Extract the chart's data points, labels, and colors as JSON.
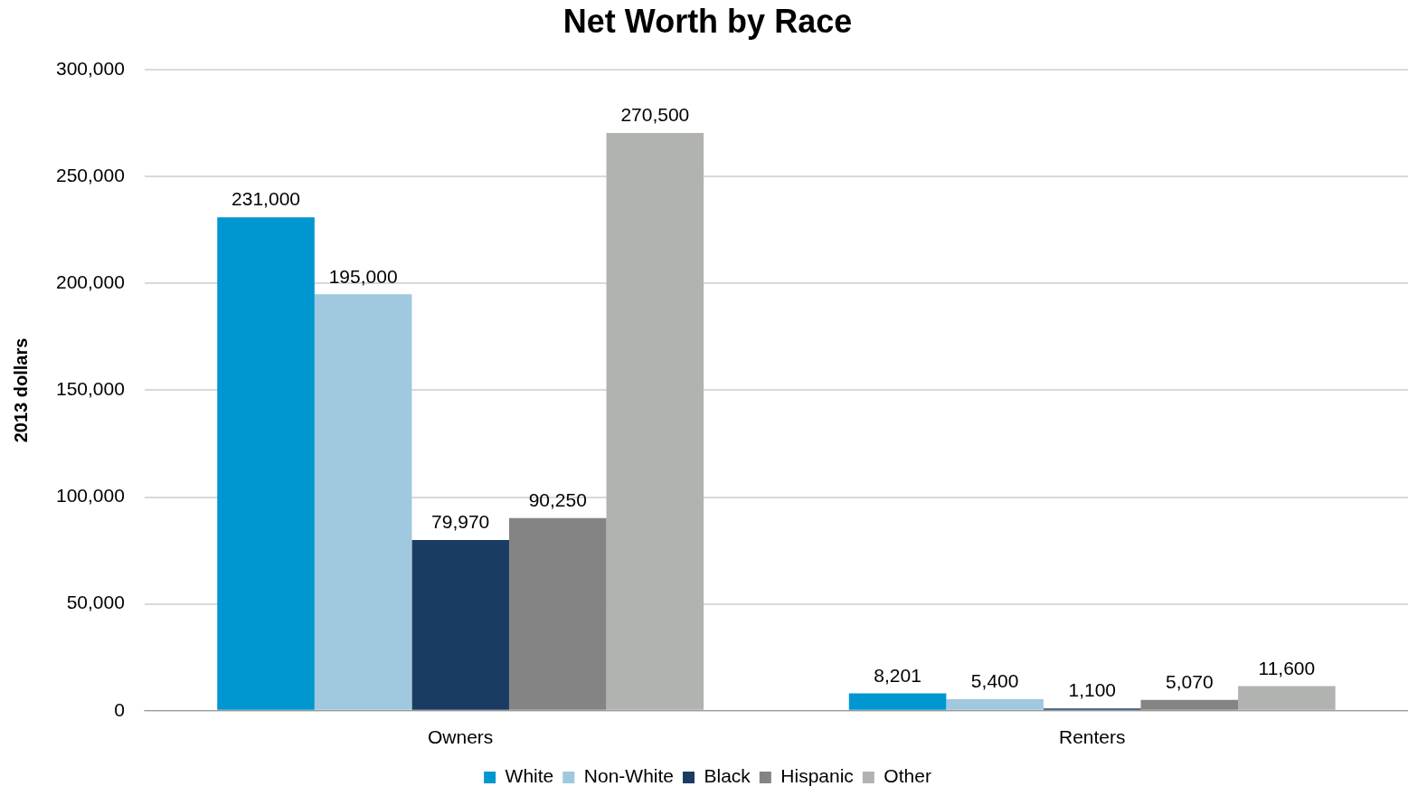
{
  "chart_data": {
    "type": "bar",
    "title": "Net Worth by Race",
    "ylabel": "2013 dollars",
    "categories": [
      "Owners",
      "Renters"
    ],
    "series": [
      {
        "name": "White",
        "color": "#0097d1",
        "values": [
          231000,
          8201
        ],
        "value_labels": [
          "231,000",
          "8,201"
        ]
      },
      {
        "name": "Non-White",
        "color": "#a0c8de",
        "values": [
          195000,
          5400
        ],
        "value_labels": [
          "195,000",
          "5,400"
        ]
      },
      {
        "name": "Black",
        "color": "#1a3c63",
        "values": [
          79970,
          1100
        ],
        "value_labels": [
          "79,970",
          "1,100"
        ]
      },
      {
        "name": "Hispanic",
        "color": "#848484",
        "values": [
          90250,
          5070
        ],
        "value_labels": [
          "90,250",
          "5,070"
        ]
      },
      {
        "name": "Other",
        "color": "#b1b3b0",
        "values": [
          270500,
          11600
        ],
        "value_labels": [
          "270,500",
          "11,600"
        ]
      }
    ],
    "ylim": [
      0,
      300000
    ],
    "yticks": [
      0,
      {
        "value": 50000,
        "label": "50,000"
      },
      {
        "value": 100000,
        "label": "100,000"
      },
      {
        "value": 150000,
        "label": "150,000"
      },
      {
        "value": 200000,
        "label": "200,000"
      },
      {
        "value": 250000,
        "label": "250,000"
      },
      {
        "value": 300000,
        "label": "300,000"
      }
    ],
    "grid": "y",
    "legend": "bottom"
  }
}
